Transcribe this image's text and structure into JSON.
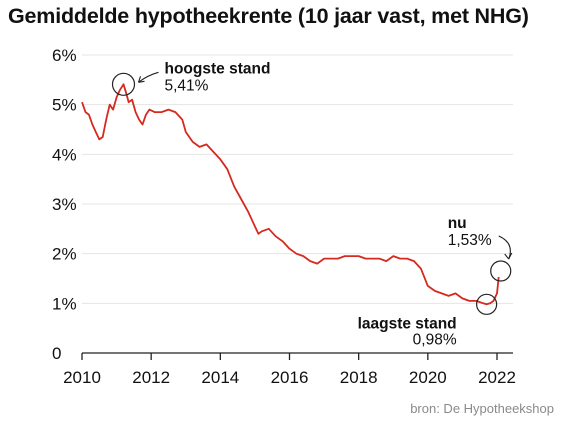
{
  "title": "Gemiddelde hypotheekrente (10 jaar vast, met NHG)",
  "source": "bron: De Hypotheekshop",
  "colors": {
    "line": "#d42a1f",
    "grid": "#e4e4e4",
    "axis": "#222222"
  },
  "chart_data": {
    "type": "line",
    "xlim": [
      2010,
      2022.4
    ],
    "ylim": [
      0,
      6
    ],
    "y_ticks": [
      {
        "value": 0,
        "label": "0"
      },
      {
        "value": 1,
        "label": "1%"
      },
      {
        "value": 2,
        "label": "2%"
      },
      {
        "value": 3,
        "label": "3%"
      },
      {
        "value": 4,
        "label": "4%"
      },
      {
        "value": 5,
        "label": "5%"
      },
      {
        "value": 6,
        "label": "6%"
      }
    ],
    "x_ticks": [
      {
        "value": 2010,
        "label": "2010"
      },
      {
        "value": 2012,
        "label": "2012"
      },
      {
        "value": 2014,
        "label": "2014"
      },
      {
        "value": 2016,
        "label": "2016"
      },
      {
        "value": 2018,
        "label": "2018"
      },
      {
        "value": 2020,
        "label": "2020"
      },
      {
        "value": 2022,
        "label": "2022"
      }
    ],
    "grid": true,
    "x": [
      2010.0,
      2010.1,
      2010.2,
      2010.3,
      2010.4,
      2010.5,
      2010.6,
      2010.7,
      2010.8,
      2010.9,
      2011.0,
      2011.1,
      2011.2,
      2011.25,
      2011.35,
      2011.45,
      2011.55,
      2011.65,
      2011.75,
      2011.85,
      2011.95,
      2012.1,
      2012.3,
      2012.5,
      2012.7,
      2012.9,
      2013.0,
      2013.2,
      2013.4,
      2013.6,
      2013.8,
      2014.0,
      2014.2,
      2014.4,
      2014.6,
      2014.8,
      2015.0,
      2015.1,
      2015.2,
      2015.4,
      2015.6,
      2015.8,
      2016.0,
      2016.2,
      2016.4,
      2016.6,
      2016.8,
      2017.0,
      2017.2,
      2017.4,
      2017.6,
      2017.8,
      2018.0,
      2018.2,
      2018.4,
      2018.6,
      2018.8,
      2019.0,
      2019.2,
      2019.4,
      2019.6,
      2019.8,
      2020.0,
      2020.2,
      2020.4,
      2020.6,
      2020.8,
      2021.0,
      2021.2,
      2021.4,
      2021.6,
      2021.7,
      2021.8,
      2021.9,
      2022.0,
      2022.05
    ],
    "series": [
      {
        "values": [
          5.05,
          4.85,
          4.8,
          4.6,
          4.45,
          4.3,
          4.35,
          4.7,
          5.0,
          4.9,
          5.15,
          5.3,
          5.41,
          5.3,
          5.05,
          5.1,
          4.85,
          4.7,
          4.6,
          4.8,
          4.9,
          4.85,
          4.85,
          4.9,
          4.85,
          4.7,
          4.45,
          4.25,
          4.15,
          4.2,
          4.05,
          3.9,
          3.7,
          3.35,
          3.1,
          2.85,
          2.55,
          2.4,
          2.45,
          2.5,
          2.35,
          2.25,
          2.1,
          2.0,
          1.95,
          1.85,
          1.8,
          1.9,
          1.9,
          1.9,
          1.95,
          1.95,
          1.95,
          1.9,
          1.9,
          1.9,
          1.85,
          1.95,
          1.9,
          1.9,
          1.85,
          1.7,
          1.35,
          1.25,
          1.2,
          1.15,
          1.2,
          1.1,
          1.05,
          1.05,
          1.0,
          0.98,
          1.0,
          1.05,
          1.2,
          1.53
        ]
      }
    ],
    "annotations": [
      {
        "bold": "hoogste stand",
        "text": "5,41%",
        "x": 2011.2,
        "y": 5.41
      },
      {
        "bold": "laagste stand",
        "text": "0,98%",
        "x": 2021.7,
        "y": 0.98
      },
      {
        "bold": "nu",
        "text": "1,53%",
        "x": 2022.05,
        "y": 1.53
      }
    ]
  }
}
